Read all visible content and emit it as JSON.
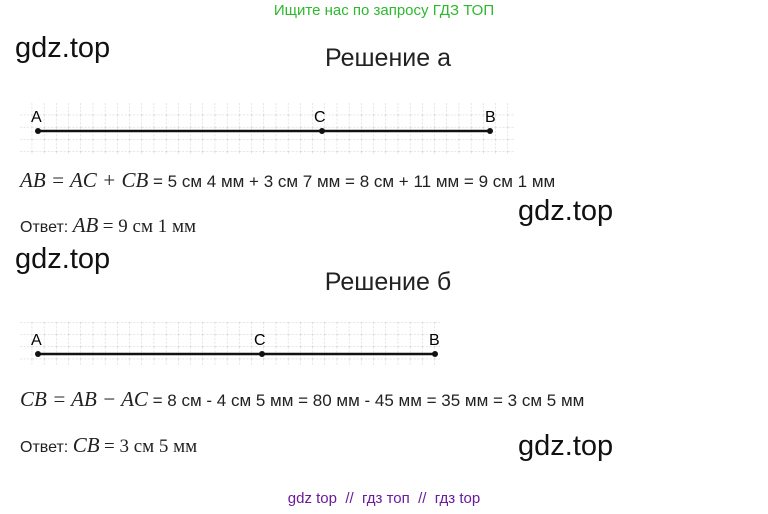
{
  "header": {
    "text": "Ищите нас по запросу ГДЗ ТОП"
  },
  "watermarks": [
    "gdz.top",
    "gdz.top",
    "gdz.top",
    "gdz.top"
  ],
  "solutions": [
    {
      "title": "Решение а",
      "points": [
        "A",
        "C",
        "B"
      ],
      "equation": {
        "math": "AB = AC + CB",
        "text": "= 5 см 4 мм + 3 см 7 мм = 8 см + 11 мм = 9 см 1 мм"
      },
      "answer": {
        "label": "Ответ:",
        "math": "AB",
        "text": "= 9 см 1 мм"
      }
    },
    {
      "title": "Решение б",
      "points": [
        "A",
        "C",
        "B"
      ],
      "equation": {
        "math": "CB = AB − AC",
        "text": "= 8 см - 4 см 5 мм = 80 мм - 45 мм = 35 мм = 3 см 5 мм"
      },
      "answer": {
        "label": "Ответ:",
        "math": "CB",
        "text": "= 3 см 5 мм"
      }
    }
  ],
  "footer": {
    "text": "gdz top  //  гдз топ  //  гдз top"
  }
}
